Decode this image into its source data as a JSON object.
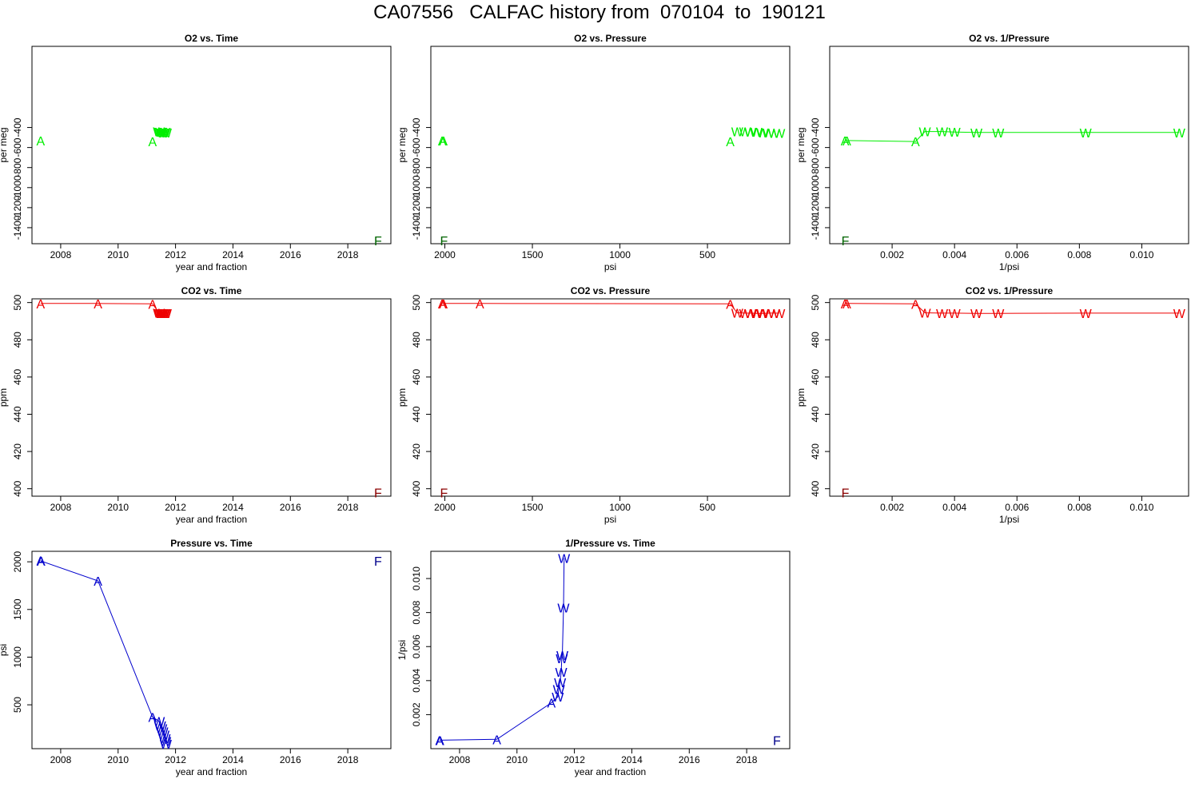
{
  "title": "CA07556   CALFAC history from  070104  to  190121",
  "colors": {
    "o2": "#00ee00",
    "o2_final": "#006400",
    "co2": "#ee0000",
    "co2_final": "#8b0000",
    "pressure": "#0000cd",
    "pressure_final": "#00008b"
  },
  "chart_data": [
    {
      "type": "scatter",
      "title": "O2 vs. Time",
      "xlabel": "year and fraction",
      "ylabel": "per meg",
      "xlim": [
        2007,
        2019.5
      ],
      "ylim": [
        -1560,
        410
      ],
      "xticks": [
        2008,
        2010,
        2012,
        2014,
        2016,
        2018
      ],
      "yticks": [
        -1400,
        -1200,
        -1000,
        -800,
        -600,
        -400
      ],
      "line": false,
      "color": "o2",
      "points": [
        {
          "x": 2007.3,
          "y": -530,
          "m": "A"
        },
        {
          "x": 2011.2,
          "y": -540,
          "m": "A"
        },
        {
          "x": 2011.42,
          "y": -440,
          "m": "W"
        },
        {
          "x": 2011.46,
          "y": -445,
          "m": "W"
        },
        {
          "x": 2011.5,
          "y": -445,
          "m": "W"
        },
        {
          "x": 2011.54,
          "y": -450,
          "m": "W"
        },
        {
          "x": 2011.58,
          "y": -450,
          "m": "W"
        },
        {
          "x": 2011.62,
          "y": -445,
          "m": "W"
        },
        {
          "x": 2011.66,
          "y": -450,
          "m": "W"
        }
      ],
      "final": {
        "x": 2019.05,
        "y": -1530,
        "m": "F"
      }
    },
    {
      "type": "scatter",
      "title": "O2 vs. Pressure",
      "xlabel": "psi",
      "ylabel": "per meg",
      "xlim": [
        2080,
        30
      ],
      "ylim": [
        -1560,
        410
      ],
      "reverse_x": true,
      "xticks": [
        2000,
        1500,
        1000,
        500
      ],
      "yticks": [
        -1400,
        -1200,
        -1000,
        -800,
        -600,
        -400
      ],
      "line": false,
      "color": "o2",
      "points": [
        {
          "x": 2015,
          "y": -530,
          "m": "A"
        },
        {
          "x": 2008,
          "y": -530,
          "m": "A"
        },
        {
          "x": 370,
          "y": -540,
          "m": "A"
        },
        {
          "x": 330,
          "y": -440,
          "m": "W"
        },
        {
          "x": 285,
          "y": -440,
          "m": "W"
        },
        {
          "x": 255,
          "y": -445,
          "m": "W"
        },
        {
          "x": 220,
          "y": -445,
          "m": "W"
        },
        {
          "x": 185,
          "y": -450,
          "m": "W"
        },
        {
          "x": 150,
          "y": -450,
          "m": "W"
        },
        {
          "x": 120,
          "y": -455,
          "m": "W"
        },
        {
          "x": 90,
          "y": -455,
          "m": "W"
        }
      ],
      "final": {
        "x": 2005,
        "y": -1530,
        "m": "F"
      }
    },
    {
      "type": "line",
      "title": "O2 vs. 1/Pressure",
      "xlabel": "1/psi",
      "ylabel": "per meg",
      "xlim": [
        0,
        0.0115
      ],
      "ylim": [
        -1560,
        410
      ],
      "xticks": [
        0.002,
        0.004,
        0.006,
        0.008,
        0.01
      ],
      "xticklabels": [
        "0.002",
        "0.004",
        "0.006",
        "0.008",
        "0.010"
      ],
      "yticks": [
        -1400,
        -1200,
        -1000,
        -800,
        -600,
        -400
      ],
      "line": true,
      "color": "o2",
      "points": [
        {
          "x": 0.00049,
          "y": -530,
          "m": "A"
        },
        {
          "x": 0.00055,
          "y": -530,
          "m": "A"
        },
        {
          "x": 0.00275,
          "y": -540,
          "m": "A"
        },
        {
          "x": 0.00305,
          "y": -440,
          "m": "W"
        },
        {
          "x": 0.0036,
          "y": -440,
          "m": "W"
        },
        {
          "x": 0.004,
          "y": -445,
          "m": "W"
        },
        {
          "x": 0.0047,
          "y": -450,
          "m": "W"
        },
        {
          "x": 0.0054,
          "y": -450,
          "m": "W"
        },
        {
          "x": 0.0082,
          "y": -450,
          "m": "W"
        },
        {
          "x": 0.0112,
          "y": -450,
          "m": "W"
        }
      ],
      "final": {
        "x": 0.0005,
        "y": -1530,
        "m": "F"
      }
    },
    {
      "type": "line",
      "title": "CO2 vs. Time",
      "xlabel": "year and fraction",
      "ylabel": "ppm",
      "xlim": [
        2007,
        2019.5
      ],
      "ylim": [
        396,
        502
      ],
      "xticks": [
        2008,
        2010,
        2012,
        2014,
        2016,
        2018
      ],
      "yticks": [
        400,
        420,
        440,
        460,
        480,
        500
      ],
      "line": true,
      "color": "co2",
      "points": [
        {
          "x": 2007.3,
          "y": 499.5,
          "m": "A"
        },
        {
          "x": 2009.3,
          "y": 499.5,
          "m": "A"
        },
        {
          "x": 2011.2,
          "y": 499.3,
          "m": "A"
        },
        {
          "x": 2011.42,
          "y": 494.5,
          "m": "W"
        },
        {
          "x": 2011.46,
          "y": 494.3,
          "m": "W"
        },
        {
          "x": 2011.5,
          "y": 494.3,
          "m": "W"
        },
        {
          "x": 2011.54,
          "y": 494.2,
          "m": "W"
        },
        {
          "x": 2011.58,
          "y": 494.2,
          "m": "W"
        },
        {
          "x": 2011.62,
          "y": 494.3,
          "m": "W"
        },
        {
          "x": 2011.66,
          "y": 494.3,
          "m": "W"
        }
      ],
      "final": {
        "x": 2019.05,
        "y": 398,
        "m": "F"
      }
    },
    {
      "type": "line",
      "title": "CO2 vs. Pressure",
      "xlabel": "psi",
      "ylabel": "ppm",
      "xlim": [
        2080,
        30
      ],
      "ylim": [
        396,
        502
      ],
      "reverse_x": true,
      "xticks": [
        2000,
        1500,
        1000,
        500
      ],
      "yticks": [
        400,
        420,
        440,
        460,
        480,
        500
      ],
      "line": true,
      "color": "co2",
      "points": [
        {
          "x": 2015,
          "y": 499.5,
          "m": "A"
        },
        {
          "x": 2008,
          "y": 499.5,
          "m": "A"
        },
        {
          "x": 1800,
          "y": 499.5,
          "m": "A"
        },
        {
          "x": 370,
          "y": 499.3,
          "m": "A"
        },
        {
          "x": 330,
          "y": 494.5,
          "m": "W"
        },
        {
          "x": 285,
          "y": 494.3,
          "m": "W"
        },
        {
          "x": 255,
          "y": 494.3,
          "m": "W"
        },
        {
          "x": 220,
          "y": 494.2,
          "m": "W"
        },
        {
          "x": 185,
          "y": 494.2,
          "m": "W"
        },
        {
          "x": 150,
          "y": 494.3,
          "m": "W"
        },
        {
          "x": 120,
          "y": 494.3,
          "m": "W"
        },
        {
          "x": 90,
          "y": 494.3,
          "m": "W"
        }
      ],
      "final": {
        "x": 2005,
        "y": 398,
        "m": "F"
      }
    },
    {
      "type": "line",
      "title": "CO2 vs. 1/Pressure",
      "xlabel": "1/psi",
      "ylabel": "ppm",
      "xlim": [
        0,
        0.0115
      ],
      "ylim": [
        396,
        502
      ],
      "xticks": [
        0.002,
        0.004,
        0.006,
        0.008,
        0.01
      ],
      "xticklabels": [
        "0.002",
        "0.004",
        "0.006",
        "0.008",
        "0.010"
      ],
      "yticks": [
        400,
        420,
        440,
        460,
        480,
        500
      ],
      "line": true,
      "color": "co2",
      "points": [
        {
          "x": 0.00049,
          "y": 499.5,
          "m": "A"
        },
        {
          "x": 0.00055,
          "y": 499.5,
          "m": "A"
        },
        {
          "x": 0.00275,
          "y": 499.3,
          "m": "A"
        },
        {
          "x": 0.00305,
          "y": 494.5,
          "m": "W"
        },
        {
          "x": 0.0036,
          "y": 494.3,
          "m": "W"
        },
        {
          "x": 0.004,
          "y": 494.3,
          "m": "W"
        },
        {
          "x": 0.0047,
          "y": 494.2,
          "m": "W"
        },
        {
          "x": 0.0054,
          "y": 494.2,
          "m": "W"
        },
        {
          "x": 0.0082,
          "y": 494.3,
          "m": "W"
        },
        {
          "x": 0.0112,
          "y": 494.3,
          "m": "W"
        }
      ],
      "final": {
        "x": 0.0005,
        "y": 398,
        "m": "F"
      }
    },
    {
      "type": "line",
      "title": "Pressure vs. Time",
      "xlabel": "year and fraction",
      "ylabel": "psi",
      "xlim": [
        2007,
        2019.5
      ],
      "ylim": [
        40,
        2110
      ],
      "xticks": [
        2008,
        2010,
        2012,
        2014,
        2016,
        2018
      ],
      "yticks": [
        500,
        1000,
        1500,
        2000
      ],
      "line": true,
      "color": "pressure",
      "points": [
        {
          "x": 2007.3,
          "y": 2015,
          "m": "A"
        },
        {
          "x": 2007.32,
          "y": 2008,
          "m": "A"
        },
        {
          "x": 2009.3,
          "y": 1800,
          "m": "A"
        },
        {
          "x": 2011.2,
          "y": 370,
          "m": "A"
        },
        {
          "x": 2011.42,
          "y": 330,
          "m": "W"
        },
        {
          "x": 2011.46,
          "y": 285,
          "m": "W"
        },
        {
          "x": 2011.5,
          "y": 255,
          "m": "W"
        },
        {
          "x": 2011.54,
          "y": 220,
          "m": "W"
        },
        {
          "x": 2011.58,
          "y": 185,
          "m": "W"
        },
        {
          "x": 2011.62,
          "y": 150,
          "m": "W"
        },
        {
          "x": 2011.64,
          "y": 120,
          "m": "W"
        },
        {
          "x": 2011.66,
          "y": 90,
          "m": "W"
        }
      ],
      "final": {
        "x": 2019.05,
        "y": 2010,
        "m": "F"
      }
    },
    {
      "type": "line",
      "title": "1/Pressure vs. Time",
      "xlabel": "year and fraction",
      "ylabel": "1/psi",
      "xlim": [
        2007,
        2019.5
      ],
      "ylim": [
        0,
        0.0116
      ],
      "xticks": [
        2008,
        2010,
        2012,
        2014,
        2016,
        2018
      ],
      "yticks": [
        0.002,
        0.004,
        0.006,
        0.008,
        0.01
      ],
      "yticklabels": [
        "0.002",
        "0.004",
        "0.006",
        "0.008",
        "0.010"
      ],
      "line": true,
      "color": "pressure",
      "points": [
        {
          "x": 2007.3,
          "y": 0.00049,
          "m": "A"
        },
        {
          "x": 2007.32,
          "y": 0.0005,
          "m": "A"
        },
        {
          "x": 2009.3,
          "y": 0.00055,
          "m": "A"
        },
        {
          "x": 2011.2,
          "y": 0.0027,
          "m": "A"
        },
        {
          "x": 2011.42,
          "y": 0.00305,
          "m": "W"
        },
        {
          "x": 2011.46,
          "y": 0.0035,
          "m": "W"
        },
        {
          "x": 2011.5,
          "y": 0.0039,
          "m": "W"
        },
        {
          "x": 2011.54,
          "y": 0.0045,
          "m": "W"
        },
        {
          "x": 2011.56,
          "y": 0.0053,
          "m": "W"
        },
        {
          "x": 2011.58,
          "y": 0.0055,
          "m": "W"
        },
        {
          "x": 2011.62,
          "y": 0.0083,
          "m": "W"
        },
        {
          "x": 2011.64,
          "y": 0.0112,
          "m": "W"
        }
      ],
      "final": {
        "x": 2019.05,
        "y": 0.0005,
        "m": "F"
      }
    }
  ]
}
